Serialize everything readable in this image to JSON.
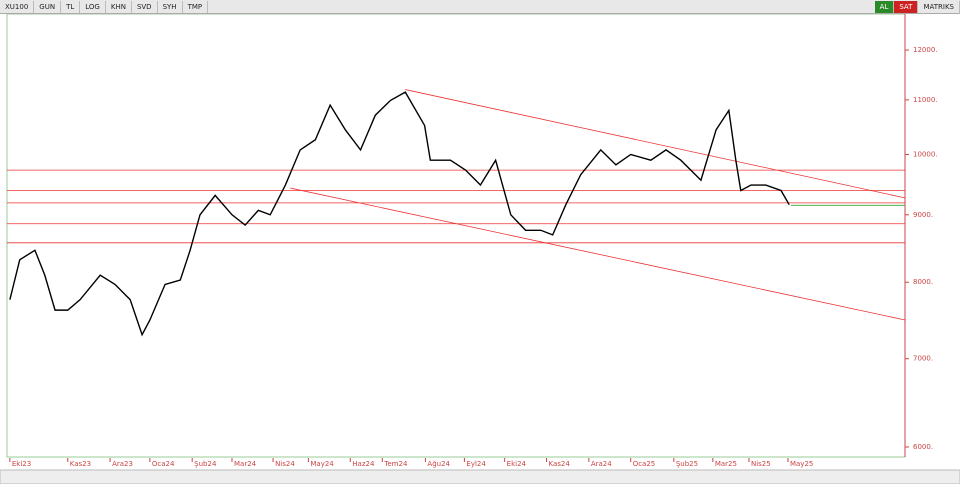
{
  "toolbar": {
    "symbol": "XU100",
    "buttons": [
      "GUN",
      "TL",
      "LOG",
      "KHN",
      "SVD",
      "SYH",
      "TMP"
    ],
    "buy": "AL",
    "sell": "SAT",
    "brand": "MATRIKS"
  },
  "chart_data": {
    "type": "line",
    "log_scale": true,
    "color": "#000000",
    "x": [
      0,
      0.24,
      0.61,
      0.85,
      1.1,
      1.41,
      1.71,
      2.2,
      2.56,
      2.93,
      3.22,
      3.41,
      3.78,
      4.15,
      4.39,
      4.63,
      5.0,
      5.41,
      5.73,
      6.05,
      6.34,
      6.71,
      7.07,
      7.44,
      7.8,
      8.17,
      8.54,
      8.9,
      9.27,
      9.63,
      10.1,
      10.24,
      10.73,
      11.1,
      11.46,
      11.83,
      12.2,
      12.56,
      12.93,
      13.22,
      13.54,
      13.9,
      14.39,
      14.76,
      15.12,
      15.61,
      15.98,
      16.34,
      16.83,
      17.2,
      17.51,
      17.68,
      17.8,
      18.05,
      18.41,
      18.78,
      18.98
    ],
    "series": [
      {
        "name": "XU100",
        "color": "#000000",
        "values": [
          7760,
          8320,
          8460,
          8100,
          7620,
          7620,
          7760,
          8100,
          7970,
          7760,
          7300,
          7490,
          7970,
          8030,
          8460,
          9000,
          9310,
          9000,
          8840,
          9070,
          9000,
          9480,
          10080,
          10260,
          10900,
          10440,
          10080,
          10710,
          10990,
          11150,
          10520,
          9900,
          9900,
          9730,
          9480,
          9900,
          9000,
          8760,
          8760,
          8690,
          9160,
          9650,
          10080,
          9820,
          10000,
          9900,
          10080,
          9900,
          9560,
          10440,
          10800,
          9900,
          9390,
          9480,
          9480,
          9390,
          9160
        ]
      }
    ],
    "hlines": [
      9730,
      9390,
      9190,
      8860,
      8570
    ],
    "trendlines": [
      {
        "x": [
          9.63,
          21.8
        ],
        "y": [
          11200,
          9270
        ]
      },
      {
        "x": [
          6.83,
          21.8
        ],
        "y": [
          9430,
          7490
        ]
      }
    ],
    "last_line": {
      "x": [
        19.02,
        21.8
      ],
      "y": [
        9150,
        9150
      ]
    },
    "xlim": [
      -0.07,
      21.8
    ],
    "ylim": [
      5896,
      12780
    ],
    "xticks": [
      {
        "value": 0,
        "label": "Eki23"
      },
      {
        "value": 1.41,
        "label": "Kas23"
      },
      {
        "value": 2.44,
        "label": "Ara23"
      },
      {
        "value": 3.41,
        "label": "Oca24"
      },
      {
        "value": 4.44,
        "label": "Şub24"
      },
      {
        "value": 5.41,
        "label": "Mar24"
      },
      {
        "value": 6.41,
        "label": "Nis24"
      },
      {
        "value": 7.27,
        "label": "May24"
      },
      {
        "value": 8.29,
        "label": "Haz24"
      },
      {
        "value": 9.07,
        "label": "Tem24"
      },
      {
        "value": 10.12,
        "label": "Ağu24"
      },
      {
        "value": 11.07,
        "label": "Eyl24"
      },
      {
        "value": 12.05,
        "label": "Eki24"
      },
      {
        "value": 13.07,
        "label": "Kas24"
      },
      {
        "value": 14.1,
        "label": "Ara24"
      },
      {
        "value": 15.12,
        "label": "Oca25"
      },
      {
        "value": 16.17,
        "label": "Şub25"
      },
      {
        "value": 17.12,
        "label": "Mar25"
      },
      {
        "value": 18.0,
        "label": "Nis25"
      },
      {
        "value": 18.95,
        "label": "May25"
      }
    ],
    "yticks": [
      {
        "value": 12000,
        "label": "12000."
      },
      {
        "value": 11000,
        "label": "11000."
      },
      {
        "value": 10000,
        "label": "10000."
      },
      {
        "value": 9000,
        "label": "9000."
      },
      {
        "value": 8000,
        "label": "8000."
      },
      {
        "value": 7000,
        "label": "7000."
      },
      {
        "value": 6000,
        "label": "6000."
      }
    ]
  }
}
